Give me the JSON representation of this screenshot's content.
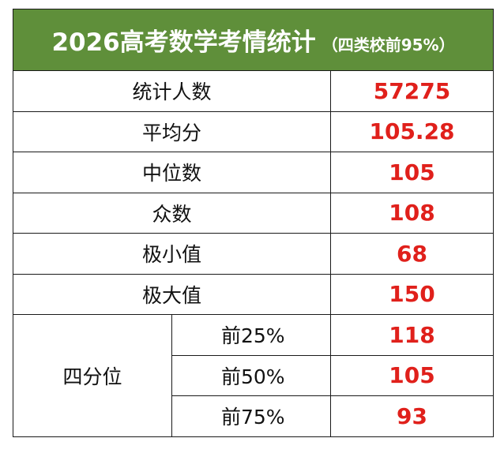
{
  "title": "2026高考数学考情统计",
  "subtitle": "（四类校前95%）",
  "rows": [
    {
      "label": "统计人数",
      "value": "57275"
    },
    {
      "label": "平均分",
      "value": "105.28"
    },
    {
      "label": "中位数",
      "value": "105"
    },
    {
      "label": "众数",
      "value": "108"
    },
    {
      "label": "极小值",
      "value": "68"
    },
    {
      "label": "极大值",
      "value": "150"
    }
  ],
  "quartile": {
    "label": "四分位",
    "rows": [
      {
        "label": "前25%",
        "value": "118"
      },
      {
        "label": "前50%",
        "value": "105"
      },
      {
        "label": "前75%",
        "value": "93"
      }
    ]
  },
  "colors": {
    "header_bg": "#5f8f3a",
    "header_text": "#ffffff",
    "value_text": "#e0201b",
    "border": "#1a1a1a"
  }
}
